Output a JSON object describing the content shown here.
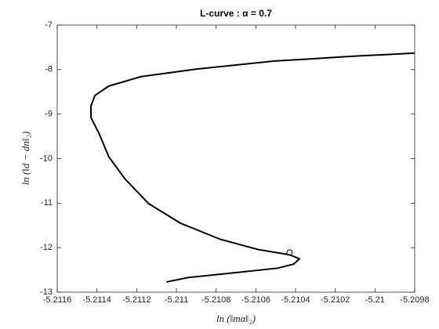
{
  "chart_data": {
    "type": "line",
    "title": "L-curve : α = 0.7",
    "xlabel": "ln (‖mα‖₂)",
    "ylabel": "ln (‖d − dn‖₂)",
    "series": [
      {
        "color": "#000000",
        "x": [
          -5.2098,
          -5.21011,
          -5.21051,
          -5.2109,
          -5.21118,
          -5.21134,
          -5.21141,
          -5.21143,
          -5.21143,
          -5.21139,
          -5.21134,
          -5.21126,
          -5.21114,
          -5.21098,
          -5.21078,
          -5.21059,
          -5.21043,
          -5.21038,
          -5.21041,
          -5.21049,
          -5.2107,
          -5.21094,
          -5.21105
        ],
        "values": [
          -7.63,
          -7.7,
          -7.81,
          -7.99,
          -8.16,
          -8.37,
          -8.58,
          -8.81,
          -9.08,
          -9.43,
          -9.96,
          -10.45,
          -11.01,
          -11.45,
          -11.81,
          -12.04,
          -12.16,
          -12.25,
          -12.37,
          -12.46,
          -12.56,
          -12.67,
          -12.77
        ]
      }
    ],
    "marker": {
      "x": -5.21043,
      "y": -12.11
    },
    "xlim": [
      -5.2116,
      -5.2098
    ],
    "xticks": [
      -5.2116,
      -5.2114,
      -5.2112,
      -5.211,
      -5.2108,
      -5.2106,
      -5.2104,
      -5.2102,
      -5.21,
      -5.2098
    ],
    "ylim": [
      -13,
      -7
    ],
    "yticks": [
      -13,
      -12,
      -11,
      -10,
      -9,
      -8,
      -7
    ]
  }
}
